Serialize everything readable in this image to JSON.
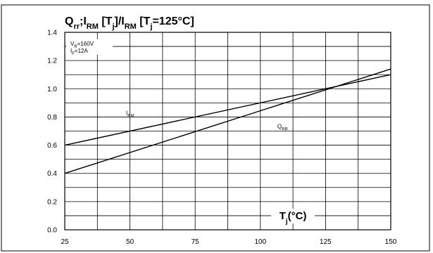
{
  "chart_data": {
    "type": "line",
    "title_parts": [
      {
        "t": "Q",
        "sub": false
      },
      {
        "t": "rr",
        "sub": true
      },
      {
        "t": ";I",
        "sub": false
      },
      {
        "t": "RM",
        "sub": true
      },
      {
        "t": " [T",
        "sub": false
      },
      {
        "t": "j",
        "sub": true
      },
      {
        "t": "]/I",
        "sub": false
      },
      {
        "t": "RM",
        "sub": true
      },
      {
        "t": " [T",
        "sub": false
      },
      {
        "t": "j",
        "sub": true
      },
      {
        "t": "=125°C]",
        "sub": false
      }
    ],
    "xlabel_parts": [
      {
        "t": "T",
        "sub": false
      },
      {
        "t": "j",
        "sub": true
      },
      {
        "t": "(°C)",
        "sub": false
      }
    ],
    "conditions": [
      [
        {
          "t": "V",
          "sub": false
        },
        {
          "t": "R",
          "sub": true
        },
        {
          "t": "=160V",
          "sub": false
        }
      ],
      [
        {
          "t": "I",
          "sub": false
        },
        {
          "t": "F",
          "sub": true
        },
        {
          "t": "=12A",
          "sub": false
        }
      ]
    ],
    "xlim": [
      25,
      150
    ],
    "ylim": [
      0,
      1.4
    ],
    "x_major_ticks": [
      25,
      50,
      75,
      100,
      125,
      150
    ],
    "x_minor_step": 12.5,
    "y_major_ticks": [
      0.0,
      0.2,
      0.4,
      0.6,
      0.8,
      1.0,
      1.2,
      1.4
    ],
    "y_tick_labels": [
      "0.0",
      "0.2",
      "0.4",
      "0.6",
      "0.8",
      "1.0",
      "1.2",
      "1.4"
    ],
    "y_minor_step": 0.1,
    "grid": true,
    "series": [
      {
        "name_parts": [
          {
            "t": "I",
            "sub": false
          },
          {
            "t": "RM",
            "sub": true
          }
        ],
        "x": [
          25,
          150
        ],
        "y": [
          0.6,
          1.1
        ],
        "label_at": [
          48.5,
          0.815
        ]
      },
      {
        "name_parts": [
          {
            "t": "Q",
            "sub": false
          },
          {
            "t": "RR",
            "sub": true
          }
        ],
        "x": [
          25,
          150
        ],
        "y": [
          0.4,
          1.14
        ],
        "label_at": [
          106.5,
          0.72
        ]
      }
    ]
  }
}
